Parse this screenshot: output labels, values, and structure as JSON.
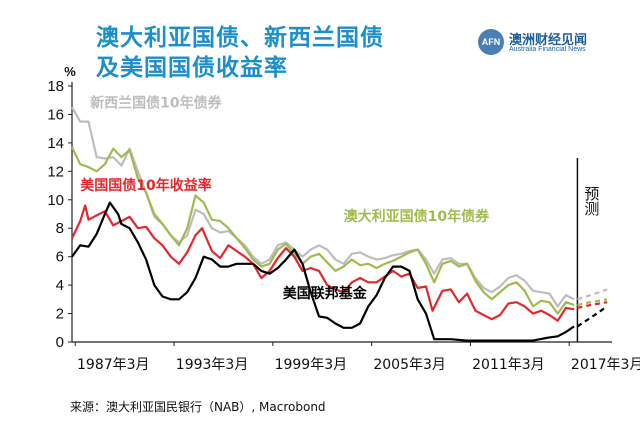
{
  "title_line1": "澳大利亚国债、新西兰国债",
  "title_line2": "及美国国债收益率",
  "logo": {
    "mark": "AFN",
    "name_cn": "澳洲财经见闻",
    "name_en": "Australia Financial News"
  },
  "source": "来源：澳大利亚国民银行（NAB）, Macrobond",
  "colors": {
    "nz": "#bdbdbd",
    "au": "#9fbb4f",
    "us10": "#e2282d",
    "fed": "#000000"
  },
  "chart_data": {
    "type": "line",
    "ylabel": "%",
    "ylim": [
      0,
      18
    ],
    "yticks": [
      0,
      2,
      4,
      6,
      8,
      10,
      12,
      14,
      16,
      18
    ],
    "xlim": [
      1987.0,
      2019.8
    ],
    "xticks": [
      {
        "x": 1987.2,
        "label": "1987年3月"
      },
      {
        "x": 1993.2,
        "label": "1993年3月"
      },
      {
        "x": 1999.2,
        "label": "1999年3月"
      },
      {
        "x": 2005.2,
        "label": "2005年3月"
      },
      {
        "x": 2011.2,
        "label": "2011年3月"
      },
      {
        "x": 2017.2,
        "label": "2017年3月"
      }
    ],
    "forecast": {
      "x": 2017.7,
      "label": "预测"
    },
    "series": [
      {
        "name": "新西兰国债10年债券",
        "key": "nz",
        "points": [
          [
            1987.0,
            16.5
          ],
          [
            1987.5,
            15.5
          ],
          [
            1988.0,
            15.5
          ],
          [
            1988.5,
            13.0
          ],
          [
            1989.0,
            12.9
          ],
          [
            1989.5,
            13.0
          ],
          [
            1990.0,
            12.4
          ],
          [
            1990.5,
            13.6
          ],
          [
            1991.0,
            12.0
          ],
          [
            1991.5,
            10.5
          ],
          [
            1992.0,
            8.8
          ],
          [
            1992.5,
            8.3
          ],
          [
            1993.0,
            7.5
          ],
          [
            1993.5,
            7.0
          ],
          [
            1994.0,
            7.5
          ],
          [
            1994.5,
            9.3
          ],
          [
            1995.0,
            9.0
          ],
          [
            1995.5,
            8.0
          ],
          [
            1996.0,
            7.7
          ],
          [
            1996.5,
            7.8
          ],
          [
            1997.0,
            7.3
          ],
          [
            1997.5,
            6.8
          ],
          [
            1998.0,
            6.0
          ],
          [
            1998.5,
            5.5
          ],
          [
            1999.0,
            5.8
          ],
          [
            1999.5,
            6.8
          ],
          [
            2000.0,
            7.0
          ],
          [
            2000.5,
            6.5
          ],
          [
            2001.0,
            6.0
          ],
          [
            2001.5,
            6.5
          ],
          [
            2002.0,
            6.8
          ],
          [
            2002.5,
            6.5
          ],
          [
            2003.0,
            5.8
          ],
          [
            2003.5,
            5.5
          ],
          [
            2004.0,
            6.2
          ],
          [
            2004.5,
            6.3
          ],
          [
            2005.0,
            6.0
          ],
          [
            2005.5,
            5.8
          ],
          [
            2006.0,
            5.9
          ],
          [
            2006.5,
            6.1
          ],
          [
            2007.0,
            6.2
          ],
          [
            2007.5,
            6.4
          ],
          [
            2008.0,
            6.5
          ],
          [
            2008.5,
            5.8
          ],
          [
            2009.0,
            4.8
          ],
          [
            2009.5,
            5.8
          ],
          [
            2010.0,
            5.9
          ],
          [
            2010.5,
            5.5
          ],
          [
            2011.0,
            5.5
          ],
          [
            2011.5,
            4.5
          ],
          [
            2012.0,
            3.8
          ],
          [
            2012.5,
            3.5
          ],
          [
            2013.0,
            3.9
          ],
          [
            2013.5,
            4.5
          ],
          [
            2014.0,
            4.7
          ],
          [
            2014.5,
            4.3
          ],
          [
            2015.0,
            3.6
          ],
          [
            2015.5,
            3.5
          ],
          [
            2016.0,
            3.4
          ],
          [
            2016.5,
            2.5
          ],
          [
            2017.0,
            3.3
          ],
          [
            2017.5,
            3.0
          ]
        ],
        "forecast_points": [
          [
            2017.7,
            3.0
          ],
          [
            2018.5,
            3.3
          ],
          [
            2019.5,
            3.7
          ]
        ]
      },
      {
        "name": "澳大利亚国债10年债券",
        "key": "au",
        "points": [
          [
            1987.0,
            13.7
          ],
          [
            1987.5,
            12.5
          ],
          [
            1988.0,
            12.3
          ],
          [
            1988.5,
            12.0
          ],
          [
            1989.0,
            12.5
          ],
          [
            1989.5,
            13.6
          ],
          [
            1990.0,
            13.0
          ],
          [
            1990.5,
            13.5
          ],
          [
            1991.0,
            11.5
          ],
          [
            1991.5,
            10.5
          ],
          [
            1992.0,
            9.0
          ],
          [
            1992.5,
            8.3
          ],
          [
            1993.0,
            7.5
          ],
          [
            1993.5,
            6.8
          ],
          [
            1994.0,
            8.0
          ],
          [
            1994.5,
            10.3
          ],
          [
            1995.0,
            9.8
          ],
          [
            1995.5,
            8.6
          ],
          [
            1996.0,
            8.5
          ],
          [
            1996.5,
            8.0
          ],
          [
            1997.0,
            7.3
          ],
          [
            1997.5,
            6.6
          ],
          [
            1998.0,
            5.8
          ],
          [
            1998.5,
            5.3
          ],
          [
            1999.0,
            5.5
          ],
          [
            1999.5,
            6.5
          ],
          [
            2000.0,
            6.9
          ],
          [
            2000.5,
            6.2
          ],
          [
            2001.0,
            5.5
          ],
          [
            2001.5,
            6.0
          ],
          [
            2002.0,
            6.2
          ],
          [
            2002.5,
            5.6
          ],
          [
            2003.0,
            5.0
          ],
          [
            2003.5,
            5.3
          ],
          [
            2004.0,
            5.8
          ],
          [
            2004.5,
            5.4
          ],
          [
            2005.0,
            5.5
          ],
          [
            2005.5,
            5.2
          ],
          [
            2006.0,
            5.5
          ],
          [
            2006.5,
            5.7
          ],
          [
            2007.0,
            6.0
          ],
          [
            2007.5,
            6.3
          ],
          [
            2008.0,
            6.5
          ],
          [
            2008.5,
            5.5
          ],
          [
            2009.0,
            4.2
          ],
          [
            2009.5,
            5.5
          ],
          [
            2010.0,
            5.7
          ],
          [
            2010.5,
            5.3
          ],
          [
            2011.0,
            5.5
          ],
          [
            2011.5,
            4.3
          ],
          [
            2012.0,
            3.5
          ],
          [
            2012.5,
            3.0
          ],
          [
            2013.0,
            3.5
          ],
          [
            2013.5,
            4.0
          ],
          [
            2014.0,
            4.2
          ],
          [
            2014.5,
            3.6
          ],
          [
            2015.0,
            2.5
          ],
          [
            2015.5,
            2.9
          ],
          [
            2016.0,
            2.8
          ],
          [
            2016.5,
            2.0
          ],
          [
            2017.0,
            2.8
          ],
          [
            2017.5,
            2.6
          ]
        ],
        "forecast_points": [
          [
            2017.7,
            2.6
          ],
          [
            2018.5,
            2.8
          ],
          [
            2019.5,
            3.0
          ]
        ]
      },
      {
        "name": "美国国债10年收益率",
        "key": "us10",
        "points": [
          [
            1987.0,
            7.3
          ],
          [
            1987.5,
            8.5
          ],
          [
            1987.8,
            9.6
          ],
          [
            1988.0,
            8.6
          ],
          [
            1988.5,
            8.9
          ],
          [
            1989.0,
            9.2
          ],
          [
            1989.5,
            8.2
          ],
          [
            1990.0,
            8.5
          ],
          [
            1990.5,
            8.8
          ],
          [
            1991.0,
            8.0
          ],
          [
            1991.5,
            8.1
          ],
          [
            1992.0,
            7.3
          ],
          [
            1992.5,
            6.8
          ],
          [
            1993.0,
            6.0
          ],
          [
            1993.5,
            5.5
          ],
          [
            1994.0,
            6.3
          ],
          [
            1994.5,
            7.5
          ],
          [
            1994.9,
            8.0
          ],
          [
            1995.5,
            6.4
          ],
          [
            1996.0,
            5.9
          ],
          [
            1996.5,
            6.8
          ],
          [
            1997.0,
            6.4
          ],
          [
            1997.5,
            6.0
          ],
          [
            1998.0,
            5.5
          ],
          [
            1998.5,
            4.5
          ],
          [
            1999.0,
            5.0
          ],
          [
            1999.5,
            5.9
          ],
          [
            2000.0,
            6.6
          ],
          [
            2000.5,
            6.0
          ],
          [
            2001.0,
            5.0
          ],
          [
            2001.5,
            5.2
          ],
          [
            2002.0,
            5.0
          ],
          [
            2002.5,
            4.0
          ],
          [
            2003.0,
            3.7
          ],
          [
            2003.5,
            3.5
          ],
          [
            2004.0,
            4.2
          ],
          [
            2004.5,
            4.5
          ],
          [
            2005.0,
            4.2
          ],
          [
            2005.5,
            4.2
          ],
          [
            2006.0,
            4.6
          ],
          [
            2006.5,
            5.0
          ],
          [
            2007.0,
            4.6
          ],
          [
            2007.5,
            4.8
          ],
          [
            2008.0,
            3.8
          ],
          [
            2008.5,
            3.9
          ],
          [
            2008.9,
            2.2
          ],
          [
            2009.5,
            3.6
          ],
          [
            2010.0,
            3.7
          ],
          [
            2010.5,
            2.8
          ],
          [
            2011.0,
            3.4
          ],
          [
            2011.5,
            2.2
          ],
          [
            2012.0,
            1.9
          ],
          [
            2012.5,
            1.6
          ],
          [
            2013.0,
            1.9
          ],
          [
            2013.5,
            2.7
          ],
          [
            2014.0,
            2.8
          ],
          [
            2014.5,
            2.5
          ],
          [
            2015.0,
            2.0
          ],
          [
            2015.5,
            2.2
          ],
          [
            2016.0,
            1.9
          ],
          [
            2016.5,
            1.5
          ],
          [
            2017.0,
            2.4
          ],
          [
            2017.5,
            2.3
          ]
        ],
        "forecast_points": [
          [
            2017.7,
            2.4
          ],
          [
            2018.5,
            2.6
          ],
          [
            2019.5,
            2.8
          ]
        ]
      },
      {
        "name": "美国联邦基金",
        "key": "fed",
        "points": [
          [
            1987.0,
            6.0
          ],
          [
            1987.5,
            6.8
          ],
          [
            1988.0,
            6.7
          ],
          [
            1988.5,
            7.6
          ],
          [
            1989.0,
            9.0
          ],
          [
            1989.3,
            9.8
          ],
          [
            1989.8,
            9.0
          ],
          [
            1990.0,
            8.3
          ],
          [
            1990.5,
            8.0
          ],
          [
            1991.0,
            7.0
          ],
          [
            1991.5,
            5.8
          ],
          [
            1992.0,
            4.0
          ],
          [
            1992.5,
            3.2
          ],
          [
            1993.0,
            3.0
          ],
          [
            1993.5,
            3.0
          ],
          [
            1994.0,
            3.5
          ],
          [
            1994.5,
            4.5
          ],
          [
            1995.0,
            6.0
          ],
          [
            1995.5,
            5.8
          ],
          [
            1996.0,
            5.3
          ],
          [
            1996.5,
            5.3
          ],
          [
            1997.0,
            5.5
          ],
          [
            1997.5,
            5.5
          ],
          [
            1998.0,
            5.5
          ],
          [
            1998.5,
            5.0
          ],
          [
            1999.0,
            4.8
          ],
          [
            1999.5,
            5.2
          ],
          [
            2000.0,
            5.8
          ],
          [
            2000.5,
            6.5
          ],
          [
            2001.0,
            5.5
          ],
          [
            2001.5,
            3.5
          ],
          [
            2002.0,
            1.8
          ],
          [
            2002.5,
            1.7
          ],
          [
            2003.0,
            1.3
          ],
          [
            2003.5,
            1.0
          ],
          [
            2004.0,
            1.0
          ],
          [
            2004.5,
            1.3
          ],
          [
            2005.0,
            2.5
          ],
          [
            2005.5,
            3.3
          ],
          [
            2006.0,
            4.5
          ],
          [
            2006.5,
            5.3
          ],
          [
            2007.0,
            5.3
          ],
          [
            2007.5,
            5.0
          ],
          [
            2008.0,
            3.0
          ],
          [
            2008.5,
            2.0
          ],
          [
            2009.0,
            0.2
          ],
          [
            2010.0,
            0.2
          ],
          [
            2011.0,
            0.1
          ],
          [
            2012.0,
            0.1
          ],
          [
            2013.0,
            0.1
          ],
          [
            2014.0,
            0.1
          ],
          [
            2015.0,
            0.1
          ],
          [
            2015.9,
            0.3
          ],
          [
            2016.5,
            0.4
          ],
          [
            2017.0,
            0.7
          ],
          [
            2017.5,
            1.1
          ]
        ],
        "forecast_points": [
          [
            2017.7,
            1.1
          ],
          [
            2018.5,
            1.7
          ],
          [
            2019.5,
            2.5
          ]
        ]
      }
    ],
    "annotations": [
      {
        "text": "新西兰国债10年债券",
        "series": "nz",
        "x": 1988.1,
        "y": 16.5
      },
      {
        "text": "美国国债10年收益率",
        "series": "us10",
        "x": 1987.5,
        "y": 10.7
      },
      {
        "text": "澳大利亚国债10年债券",
        "series": "au",
        "x": 2003.5,
        "y": 8.5
      },
      {
        "text": "美国联邦基金",
        "series": "fed",
        "x": 1999.8,
        "y": 3.1
      }
    ]
  }
}
